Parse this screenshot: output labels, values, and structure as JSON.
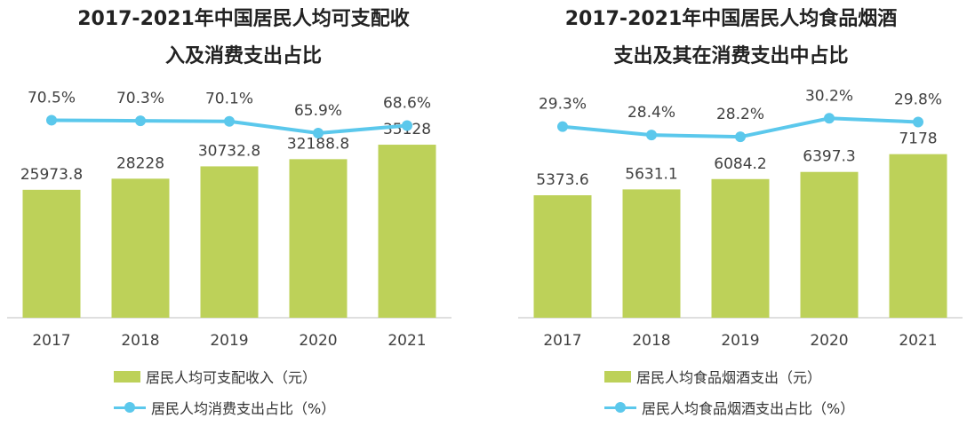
{
  "chart_data": [
    {
      "type": "bar",
      "title_line1": "2017-2021年中国居民人均可支配收",
      "title_line2": "入及消费支出占比",
      "categories": [
        "2017",
        "2018",
        "2019",
        "2020",
        "2021"
      ],
      "series": [
        {
          "name": "居民人均可支配收入（元）",
          "type": "bar",
          "values": [
            25973.8,
            28228,
            30732.8,
            32188.8,
            35128
          ],
          "labels": [
            "25973.8",
            "28228",
            "30732.8",
            "32188.8",
            "35128"
          ]
        },
        {
          "name": "居民人均消费支出占比（%）",
          "type": "line",
          "values": [
            70.5,
            70.3,
            70.1,
            65.9,
            68.6
          ],
          "labels": [
            "70.5%",
            "70.3%",
            "70.1%",
            "65.9%",
            "68.6%"
          ]
        }
      ],
      "bar_ylim": [
        0,
        40000
      ],
      "line_ylim": [
        0,
        76
      ],
      "legend": [
        "居民人均可支配收入（元）",
        "居民人均消费支出占比（%）"
      ],
      "colors": {
        "bar": "#bdd159",
        "line": "#5bc8ec"
      }
    },
    {
      "type": "bar",
      "title_line1": "2017-2021年中国居民人均食品烟酒",
      "title_line2": "支出及其在消费支出中占比",
      "categories": [
        "2017",
        "2018",
        "2019",
        "2020",
        "2021"
      ],
      "series": [
        {
          "name": "居民人均食品烟酒支出（元）",
          "type": "bar",
          "values": [
            5373.6,
            5631.1,
            6084.2,
            6397.3,
            7178
          ],
          "labels": [
            "5373.6",
            "5631.1",
            "6084.2",
            "6397.3",
            "7178"
          ]
        },
        {
          "name": "居民人均食品烟酒支出占比（%）",
          "type": "line",
          "values": [
            29.3,
            28.4,
            28.2,
            30.2,
            29.8
          ],
          "labels": [
            "29.3%",
            "28.4%",
            "28.2%",
            "30.2%",
            "29.8%"
          ]
        }
      ],
      "bar_ylim": [
        0,
        8100
      ],
      "line_ylim": [
        22,
        33
      ],
      "legend": [
        "居民人均食品烟酒支出（元）",
        "居民人均食品烟酒支出占比（%）"
      ],
      "colors": {
        "bar": "#bdd159",
        "line": "#5bc8ec"
      }
    }
  ]
}
